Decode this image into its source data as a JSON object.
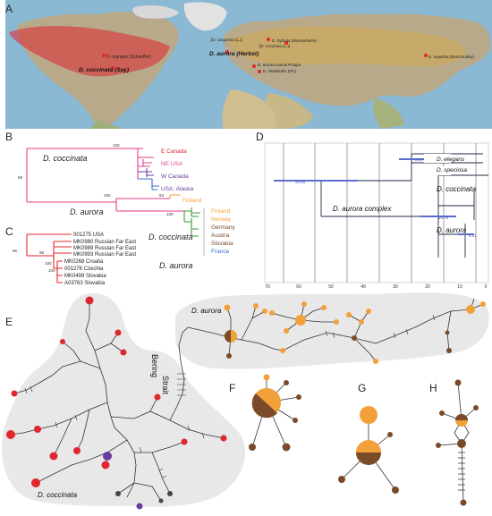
{
  "colors": {
    "red": "#e0262e",
    "orange": "#f2a03a",
    "brown": "#7a4a2a",
    "purple": "#6a3ca0",
    "ocean": "#8bb9d3",
    "land": "#b7a98a",
    "green": "#3c9a3c",
    "blue": "#3c6ad0",
    "pink": "#e63c8a"
  },
  "panels": {
    "a": "A",
    "b": "B",
    "c": "C",
    "d": "D",
    "e": "E",
    "f": "F",
    "g": "G",
    "h": "H"
  },
  "map": {
    "locations": [
      {
        "label": "D. nigripes (Schaeffer)"
      },
      {
        "label": "D. coccinata (Say)"
      },
      {
        "label": "D. aurora (Herbst)"
      },
      {
        "label": "D. hybrida (Mannerheim)"
      },
      {
        "label": "[D. sargonea (L.)]"
      },
      {
        "label": "[D. coccinea (L.)]"
      },
      {
        "label": "D. aurora caucal Pioppo"
      },
      {
        "label": "D. limbalcolis (Pic)"
      },
      {
        "label": "D. superba (Motschulsky)"
      }
    ]
  },
  "tree_b": {
    "title_coccinata": "D. coccinata",
    "title_aurora": "D. aurora",
    "support": [
      "100",
      "98",
      "100",
      "94",
      "100"
    ],
    "clades": [
      {
        "label": "E Canada",
        "color": "red"
      },
      {
        "label": "NE USA",
        "color": "pink"
      },
      {
        "label": "W Canada",
        "color": "purple"
      },
      {
        "label": "USA: Alaska",
        "color": "purple"
      },
      {
        "label": "Finland",
        "color": "orange"
      },
      {
        "label": "Finland",
        "color": "orange"
      },
      {
        "label": "Norway",
        "color": "orange"
      },
      {
        "label": "Germany",
        "color": "brown"
      },
      {
        "label": "Austria",
        "color": "brown"
      },
      {
        "label": "Slovakia",
        "color": "brown"
      },
      {
        "label": "France",
        "color": "blue"
      }
    ]
  },
  "tree_c": {
    "title_coccinata": "D. coccinata",
    "title_aurora": "D. aurora",
    "support": [
      "96",
      "95",
      "100",
      "100"
    ],
    "taxa": [
      "001275 USA",
      "MK0980 Russian Far East",
      "MK0989 Russian Far East",
      "MK0993 Russian Far East",
      "MK0268 Croatia",
      "001276 Czechia",
      "MK0499 Slovakia",
      "A03763 Slovakia"
    ]
  },
  "chrono_d": {
    "taxa": [
      "D. elegans",
      "D. speciosa",
      "D. coccinata",
      "D. aurora"
    ],
    "complex_label": "D. aurora complex",
    "node_ages": [
      "23.2",
      "53.93",
      "15.75",
      "8.21"
    ],
    "axis_ticks": [
      "70",
      "60",
      "50",
      "40",
      "30",
      "20",
      "10",
      "0"
    ]
  },
  "network_e": {
    "region_aurora": "D. aurora",
    "region_coccinata": "D. coccinata",
    "strait_line1": "Bering",
    "strait_line2": "Strait"
  }
}
